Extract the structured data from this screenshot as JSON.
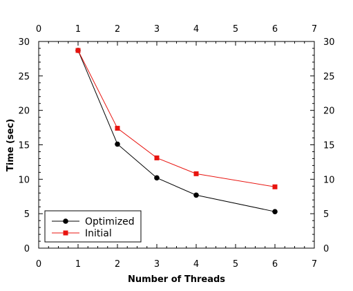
{
  "chart_data": {
    "type": "line",
    "title": "",
    "xlabel": "Number of Threads",
    "ylabel": "Time (sec)",
    "xlim": [
      0,
      7
    ],
    "ylim": [
      0,
      30
    ],
    "x_ticks": [
      "0",
      "1",
      "2",
      "3",
      "4",
      "5",
      "6",
      "7"
    ],
    "y_ticks": [
      "0",
      "5",
      "10",
      "15",
      "20",
      "25",
      "30"
    ],
    "mirror_axes": true,
    "grid": false,
    "legend_position": "bottom-left",
    "series": [
      {
        "name": "Optimized",
        "color": "#000000",
        "marker": "circle",
        "x": [
          1,
          2,
          3,
          4,
          6
        ],
        "y": [
          28.7,
          15.1,
          10.2,
          7.7,
          5.3
        ]
      },
      {
        "name": "Initial",
        "color": "#e8140f",
        "marker": "square",
        "x": [
          1,
          2,
          3,
          4,
          6
        ],
        "y": [
          28.7,
          17.4,
          13.1,
          10.8,
          8.9
        ]
      }
    ]
  }
}
